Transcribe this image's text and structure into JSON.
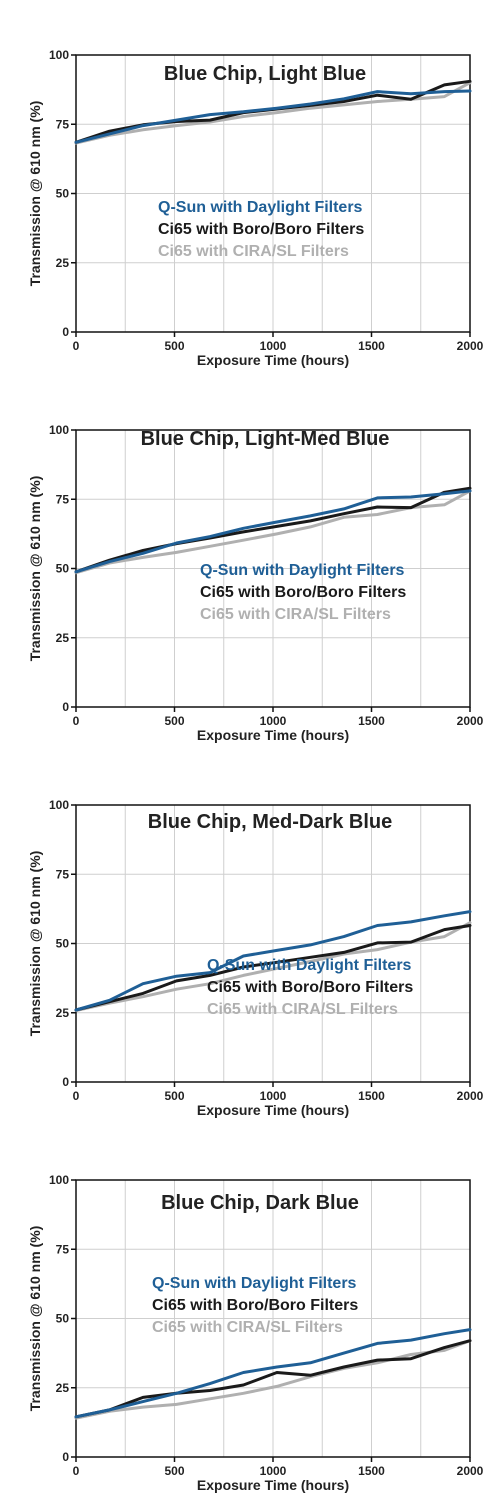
{
  "colors": {
    "qsun": "#1f5f96",
    "boro": "#1a1a1a",
    "cira": "#b0b0b0",
    "grid": "#cfcfcf",
    "axis": "#111111"
  },
  "chart_data": [
    {
      "type": "line",
      "title": "Blue Chip, Light Blue",
      "xlabel": "Exposure Time (hours)",
      "ylabel": "Transmission @ 610 nm (%)",
      "xlim": [
        0,
        2000
      ],
      "ylim": [
        0,
        100
      ],
      "xticks": [
        0,
        500,
        1000,
        1500,
        2000
      ],
      "yticks": [
        0,
        25,
        50,
        75,
        100
      ],
      "grid": true,
      "legend_position": "center-left",
      "series": [
        {
          "name": "Q-Sun with Daylight Filters",
          "color": "qsun",
          "x": [
            0,
            170,
            340,
            510,
            680,
            850,
            1020,
            1190,
            1360,
            1530,
            1700,
            1870,
            2000
          ],
          "y": [
            68.5,
            71.5,
            74.5,
            76.5,
            78.5,
            79.5,
            80.8,
            82.3,
            84.2,
            86.8,
            86,
            86.8,
            87
          ]
        },
        {
          "name": "Ci65 with Boro/Boro Filters",
          "color": "boro",
          "x": [
            0,
            170,
            340,
            510,
            680,
            850,
            1020,
            1190,
            1360,
            1530,
            1700,
            1870,
            2000
          ],
          "y": [
            68.5,
            72.5,
            74.8,
            76,
            76.5,
            79.2,
            80.5,
            81.8,
            83.2,
            85.5,
            84,
            89.2,
            90.5
          ]
        },
        {
          "name": "Ci65 with CIRA/SL Filters",
          "color": "cira",
          "x": [
            0,
            170,
            340,
            510,
            680,
            850,
            1020,
            1190,
            1360,
            1530,
            1700,
            1870,
            2000
          ],
          "y": [
            68.2,
            71,
            73,
            74.5,
            75.8,
            77.8,
            79.2,
            80.8,
            82,
            83.2,
            84,
            85,
            90
          ]
        }
      ]
    },
    {
      "type": "line",
      "title": "Blue Chip, Light-Med Blue",
      "xlabel": "Exposure Time (hours)",
      "ylabel": "Transmission @ 610 nm (%)",
      "xlim": [
        0,
        2000
      ],
      "ylim": [
        0,
        100
      ],
      "xticks": [
        0,
        500,
        1000,
        1500,
        2000
      ],
      "yticks": [
        0,
        25,
        50,
        75,
        100
      ],
      "grid": true,
      "legend_position": "center-right",
      "series": [
        {
          "name": "Q-Sun with Daylight Filters",
          "color": "qsun",
          "x": [
            0,
            170,
            340,
            510,
            680,
            850,
            1020,
            1190,
            1360,
            1530,
            1700,
            1870,
            2000
          ],
          "y": [
            48.8,
            52.5,
            55.5,
            59.2,
            61.5,
            64.5,
            66.8,
            69,
            71.5,
            75.5,
            75.8,
            77,
            78
          ]
        },
        {
          "name": "Ci65 with Boro/Boro Filters",
          "color": "boro",
          "x": [
            0,
            170,
            340,
            510,
            680,
            850,
            1020,
            1190,
            1360,
            1530,
            1700,
            1870,
            2000
          ],
          "y": [
            48.8,
            53,
            56.5,
            59,
            61,
            63.2,
            65.2,
            67.2,
            69.8,
            72.2,
            72,
            77.5,
            79
          ]
        },
        {
          "name": "Ci65 with CIRA/SL Filters",
          "color": "cira",
          "x": [
            0,
            170,
            340,
            510,
            680,
            850,
            1020,
            1190,
            1360,
            1530,
            1700,
            1870,
            2000
          ],
          "y": [
            48.5,
            52,
            54,
            55.8,
            58,
            60.2,
            62.5,
            65,
            68.5,
            69.5,
            72,
            73,
            78
          ]
        }
      ]
    },
    {
      "type": "line",
      "title": "Blue Chip, Med-Dark Blue",
      "xlabel": "Exposure Time (hours)",
      "ylabel": "Transmission @ 610 nm (%)",
      "xlim": [
        0,
        2000
      ],
      "ylim": [
        0,
        100
      ],
      "xticks": [
        0,
        500,
        1000,
        1500,
        2000
      ],
      "yticks": [
        0,
        25,
        50,
        75,
        100
      ],
      "grid": true,
      "legend_position": "center-right",
      "series": [
        {
          "name": "Q-Sun with Daylight Filters",
          "color": "qsun",
          "x": [
            0,
            170,
            340,
            510,
            680,
            850,
            1020,
            1190,
            1360,
            1530,
            1700,
            1870,
            2000
          ],
          "y": [
            26,
            29.5,
            35.5,
            38.2,
            39.5,
            45.5,
            47.5,
            49.5,
            52.5,
            56.5,
            57.8,
            60,
            61.5
          ]
        },
        {
          "name": "Ci65 with Boro/Boro Filters",
          "color": "boro",
          "x": [
            0,
            170,
            340,
            510,
            680,
            850,
            1020,
            1190,
            1360,
            1530,
            1700,
            1870,
            2000
          ],
          "y": [
            26,
            29,
            32,
            36.5,
            38.5,
            41.5,
            43.2,
            45,
            46.8,
            50.2,
            50.5,
            55,
            56.5
          ]
        },
        {
          "name": "Ci65 with CIRA/SL Filters",
          "color": "cira",
          "x": [
            0,
            170,
            340,
            510,
            680,
            850,
            1020,
            1190,
            1360,
            1530,
            1700,
            1870,
            2000
          ],
          "y": [
            25.8,
            28.5,
            30.8,
            33.5,
            35.5,
            38.5,
            41,
            43.5,
            46.2,
            47.8,
            50.5,
            52.5,
            57.5
          ]
        }
      ]
    },
    {
      "type": "line",
      "title": "Blue Chip, Dark Blue",
      "xlabel": "Exposure Time (hours)",
      "ylabel": "Transmission @ 610 nm (%)",
      "xlim": [
        0,
        2000
      ],
      "ylim": [
        0,
        100
      ],
      "xticks": [
        0,
        500,
        1000,
        1500,
        2000
      ],
      "yticks": [
        0,
        25,
        50,
        75,
        100
      ],
      "grid": true,
      "legend_position": "upper-center",
      "series": [
        {
          "name": "Q-Sun with Daylight Filters",
          "color": "qsun",
          "x": [
            0,
            170,
            340,
            510,
            680,
            850,
            1020,
            1190,
            1360,
            1530,
            1700,
            1870,
            2000
          ],
          "y": [
            14.5,
            17,
            20,
            23,
            26.5,
            30.5,
            32.5,
            34,
            37.5,
            41,
            42.2,
            44.5,
            46
          ]
        },
        {
          "name": "Ci65 with Boro/Boro Filters",
          "color": "boro",
          "x": [
            0,
            170,
            340,
            510,
            680,
            850,
            1020,
            1190,
            1360,
            1530,
            1700,
            1870,
            2000
          ],
          "y": [
            14.5,
            17,
            21.5,
            23,
            24,
            26,
            30.5,
            29.5,
            32.5,
            35,
            35.5,
            39.5,
            42
          ]
        },
        {
          "name": "Ci65 with CIRA/SL Filters",
          "color": "cira",
          "x": [
            0,
            170,
            340,
            510,
            680,
            850,
            1020,
            1190,
            1360,
            1530,
            1700,
            1870,
            2000
          ],
          "y": [
            14,
            16.5,
            18,
            19,
            21,
            23,
            25.5,
            29,
            32,
            34,
            37,
            38.5,
            42
          ]
        }
      ]
    }
  ]
}
